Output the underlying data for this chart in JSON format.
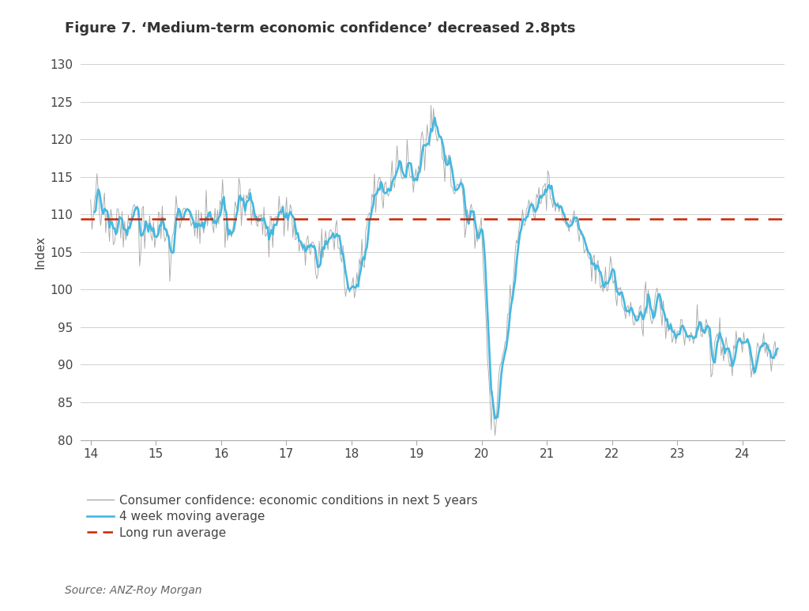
{
  "title": "Figure 7. ‘Medium-term economic confidence’ decreased 2.8pts",
  "ylabel": "Index",
  "source": "Source: ANZ-Roy Morgan",
  "long_run_average": 109.4,
  "xlim": [
    13.85,
    24.65
  ],
  "ylim": [
    80,
    130
  ],
  "yticks": [
    80,
    85,
    90,
    95,
    100,
    105,
    110,
    115,
    120,
    125,
    130
  ],
  "xticks": [
    14,
    15,
    16,
    17,
    18,
    19,
    20,
    21,
    22,
    23,
    24
  ],
  "raw_color": "#aaaaaa",
  "ma_color": "#45b8e0",
  "lra_color": "#cc2200",
  "background_color": "#ffffff",
  "legend_label_raw": "Consumer confidence: economic conditions in next 5 years",
  "legend_label_ma": "4 week moving average",
  "legend_label_lra": "Long run average",
  "title_fontsize": 13,
  "axis_fontsize": 11,
  "tick_fontsize": 11,
  "source_fontsize": 10
}
